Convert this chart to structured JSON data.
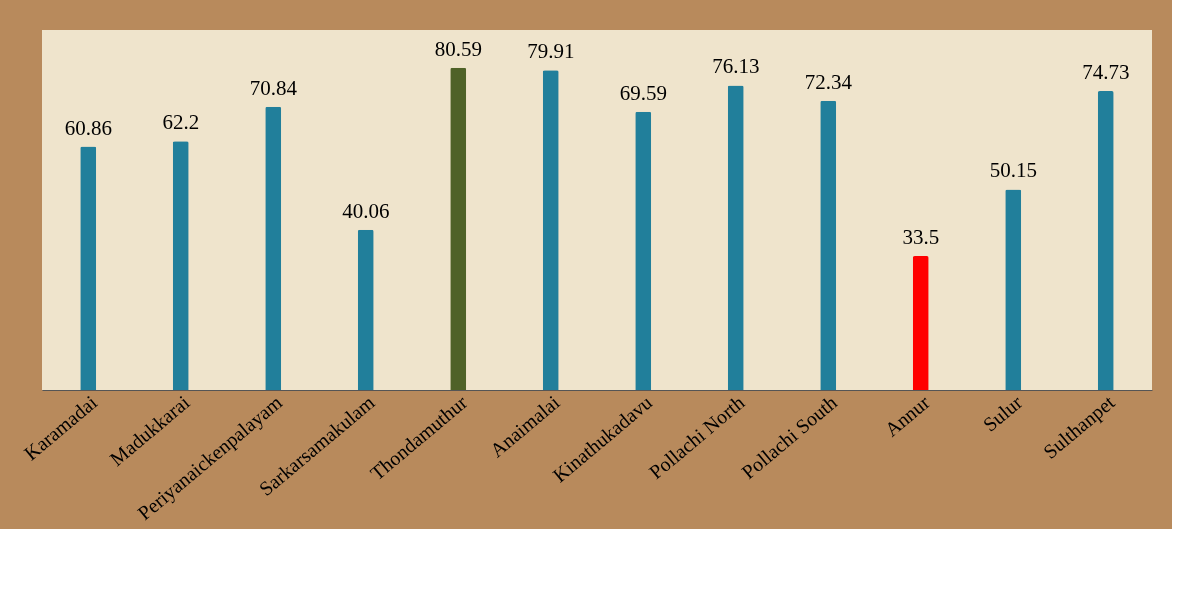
{
  "chart_data": {
    "type": "bar",
    "categories": [
      "Karamadai",
      "Madukkarai",
      "Periyanaickenpalayam",
      "Sarkarsamakulam",
      "Thondamuthur",
      "Anaimalai",
      "Kinathukadavu",
      "Pollachi North",
      "Pollachi South",
      "Annur",
      "Sulur",
      "Sulthanpet"
    ],
    "values": [
      60.86,
      62.2,
      70.84,
      40.06,
      80.59,
      79.91,
      69.59,
      76.13,
      72.34,
      33.5,
      50.15,
      74.73
    ],
    "colors": [
      "#217f9b",
      "#217f9b",
      "#217f9b",
      "#217f9b",
      "#4f6228",
      "#217f9b",
      "#217f9b",
      "#217f9b",
      "#217f9b",
      "#ff0000",
      "#217f9b",
      "#217f9b"
    ],
    "data_labels": true,
    "grid": false
  }
}
